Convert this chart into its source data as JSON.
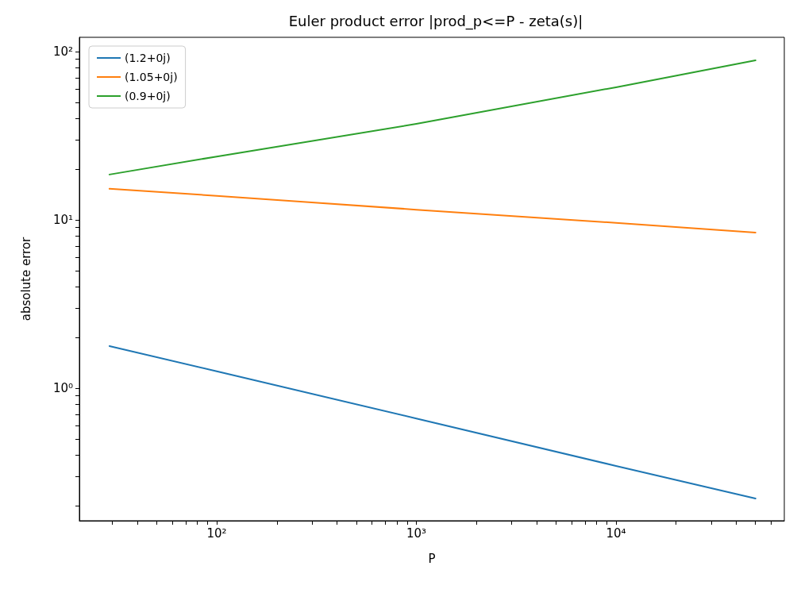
{
  "chart_data": {
    "type": "line",
    "title": "Euler product error |prod_p<=P - zeta(s)|",
    "xlabel": "P",
    "ylabel": "absolute error",
    "log": "xy",
    "grid": false,
    "legend": "top left",
    "marker": "none",
    "line_style": "solid",
    "x": [
      29,
      100,
      1000,
      10000,
      50000
    ],
    "series": [
      {
        "name": "(1.2+0j)",
        "color": "#1f77b4",
        "values": [
          1.78,
          1.26,
          0.66,
          0.345,
          0.221
        ]
      },
      {
        "name": "(1.05+0j)",
        "color": "#ff7f0e",
        "values": [
          15.3,
          13.9,
          11.5,
          9.6,
          8.4
        ]
      },
      {
        "name": "(0.9+0j)",
        "color": "#2ca02c",
        "values": [
          18.6,
          23.8,
          37.2,
          61.4,
          88.7
        ]
      }
    ],
    "xlim": [
      20.5,
      69700
    ],
    "xticks": [
      {
        "value": 30,
        "label": null
      },
      {
        "value": 40,
        "label": null
      },
      {
        "value": 50,
        "label": null
      },
      {
        "value": 60,
        "label": null
      },
      {
        "value": 70,
        "label": null
      },
      {
        "value": 80,
        "label": null
      },
      {
        "value": 90,
        "label": null
      },
      {
        "value": 100,
        "label": "10²"
      },
      {
        "value": 200,
        "label": null
      },
      {
        "value": 300,
        "label": null
      },
      {
        "value": 400,
        "label": null
      },
      {
        "value": 500,
        "label": null
      },
      {
        "value": 600,
        "label": null
      },
      {
        "value": 700,
        "label": null
      },
      {
        "value": 800,
        "label": null
      },
      {
        "value": 900,
        "label": null
      },
      {
        "value": 1000,
        "label": "10³"
      },
      {
        "value": 2000,
        "label": null
      },
      {
        "value": 3000,
        "label": null
      },
      {
        "value": 4000,
        "label": null
      },
      {
        "value": 5000,
        "label": null
      },
      {
        "value": 6000,
        "label": null
      },
      {
        "value": 7000,
        "label": null
      },
      {
        "value": 8000,
        "label": null
      },
      {
        "value": 9000,
        "label": null
      },
      {
        "value": 10000,
        "label": "10⁴"
      },
      {
        "value": 20000,
        "label": null
      },
      {
        "value": 30000,
        "label": null
      },
      {
        "value": 40000,
        "label": null
      },
      {
        "value": 50000,
        "label": null
      },
      {
        "value": 60000,
        "label": null
      }
    ],
    "ylim": [
      0.163,
      121.6
    ],
    "yticks": [
      {
        "value": 0.2,
        "label": null
      },
      {
        "value": 0.3,
        "label": null
      },
      {
        "value": 0.4,
        "label": null
      },
      {
        "value": 0.5,
        "label": null
      },
      {
        "value": 0.6,
        "label": null
      },
      {
        "value": 0.7,
        "label": null
      },
      {
        "value": 0.8,
        "label": null
      },
      {
        "value": 0.9,
        "label": null
      },
      {
        "value": 1,
        "label": "10⁰"
      },
      {
        "value": 2,
        "label": null
      },
      {
        "value": 3,
        "label": null
      },
      {
        "value": 4,
        "label": null
      },
      {
        "value": 5,
        "label": null
      },
      {
        "value": 6,
        "label": null
      },
      {
        "value": 7,
        "label": null
      },
      {
        "value": 8,
        "label": null
      },
      {
        "value": 9,
        "label": null
      },
      {
        "value": 10,
        "label": "10¹"
      },
      {
        "value": 20,
        "label": null
      },
      {
        "value": 30,
        "label": null
      },
      {
        "value": 40,
        "label": null
      },
      {
        "value": 50,
        "label": null
      },
      {
        "value": 60,
        "label": null
      },
      {
        "value": 70,
        "label": null
      },
      {
        "value": 80,
        "label": null
      },
      {
        "value": 90,
        "label": null
      },
      {
        "value": 100,
        "label": "10²"
      }
    ]
  }
}
